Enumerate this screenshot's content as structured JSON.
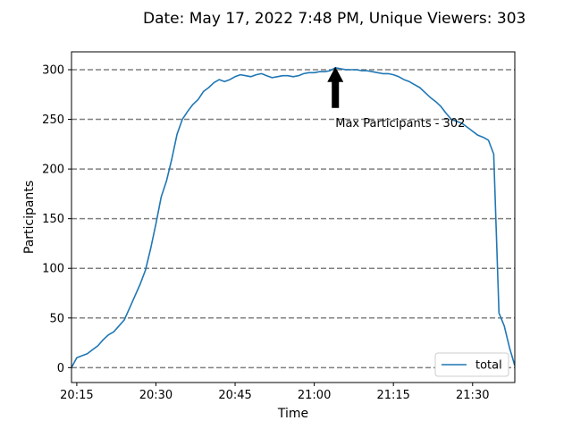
{
  "title": "Date: May 17, 2022 7:48 PM, Unique Viewers: 303",
  "chart_data": {
    "type": "line",
    "title": "Date: May 17, 2022 7:48 PM, Unique Viewers: 303",
    "xlabel": "Time",
    "ylabel": "Participants",
    "x_tick_labels": [
      "20:15",
      "20:30",
      "20:45",
      "21:00",
      "21:15",
      "21:30"
    ],
    "y_tick_labels": [
      "0",
      "50",
      "100",
      "150",
      "200",
      "250",
      "300"
    ],
    "ylim": [
      -15,
      318
    ],
    "xlim": [
      "20:14",
      "21:38"
    ],
    "grid": "horizontal dashed",
    "legend": {
      "position": "lower-right",
      "entries": [
        "total"
      ]
    },
    "annotation": {
      "text": "Max Participants - 302",
      "x": "21:04",
      "y": 302,
      "arrow": "up"
    },
    "series": [
      {
        "name": "total",
        "color": "#1f77b4",
        "x": [
          "20:14",
          "20:15",
          "20:16",
          "20:17",
          "20:18",
          "20:19",
          "20:20",
          "20:21",
          "20:22",
          "20:23",
          "20:24",
          "20:25",
          "20:26",
          "20:27",
          "20:28",
          "20:29",
          "20:30",
          "20:31",
          "20:32",
          "20:33",
          "20:34",
          "20:35",
          "20:36",
          "20:37",
          "20:38",
          "20:39",
          "20:40",
          "20:41",
          "20:42",
          "20:43",
          "20:44",
          "20:45",
          "20:46",
          "20:47",
          "20:48",
          "20:49",
          "20:50",
          "20:51",
          "20:52",
          "20:53",
          "20:54",
          "20:55",
          "20:56",
          "20:57",
          "20:58",
          "20:59",
          "21:00",
          "21:01",
          "21:02",
          "21:03",
          "21:04",
          "21:05",
          "21:06",
          "21:07",
          "21:08",
          "21:09",
          "21:10",
          "21:11",
          "21:12",
          "21:13",
          "21:14",
          "21:15",
          "21:16",
          "21:17",
          "21:18",
          "21:19",
          "21:20",
          "21:21",
          "21:22",
          "21:23",
          "21:24",
          "21:25",
          "21:26",
          "21:27",
          "21:28",
          "21:29",
          "21:30",
          "21:31",
          "21:32",
          "21:33",
          "21:34",
          "21:35",
          "21:36",
          "21:37",
          "21:38"
        ],
        "values": [
          0,
          10,
          12,
          14,
          18,
          22,
          28,
          33,
          36,
          42,
          48,
          60,
          72,
          84,
          98,
          120,
          145,
          172,
          188,
          210,
          235,
          250,
          258,
          265,
          270,
          278,
          282,
          287,
          290,
          288,
          290,
          293,
          295,
          294,
          293,
          295,
          296,
          294,
          292,
          293,
          294,
          294,
          293,
          294,
          296,
          297,
          297,
          298,
          298,
          299,
          302,
          301,
          300,
          300,
          300,
          299,
          299,
          298,
          297,
          296,
          296,
          295,
          293,
          290,
          288,
          285,
          282,
          277,
          272,
          268,
          263,
          256,
          250,
          248,
          246,
          242,
          238,
          234,
          232,
          229,
          215,
          55,
          42,
          20,
          2
        ]
      }
    ]
  }
}
